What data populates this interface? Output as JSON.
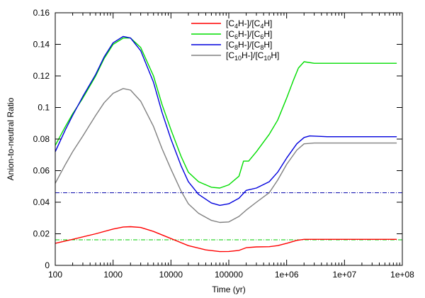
{
  "chart_data": {
    "type": "line",
    "xlabel": "Time (yr)",
    "ylabel": "Anion-to-neutral Ratio",
    "xscale": "log",
    "xlim": [
      100,
      100000000
    ],
    "ylim": [
      0,
      0.16
    ],
    "x_tick_labels": [
      "100",
      "1000",
      "10000",
      "100000",
      "1e+06",
      "1e+07",
      "1e+08"
    ],
    "y_tick_labels": [
      "0",
      "0.02",
      "0.04",
      "0.06",
      "0.08",
      "0.1",
      "0.12",
      "0.14",
      "0.16"
    ],
    "legend_position": "top-center",
    "series": [
      {
        "name": "[C4H-]/[C4H]",
        "legend_parts": [
          [
            "[C",
            ""
          ],
          [
            "4",
            "sub"
          ],
          [
            "H-]/[C",
            ""
          ],
          [
            "4",
            "sub"
          ],
          [
            "H]",
            ""
          ]
        ],
        "color": "#ff0000",
        "x": [
          100,
          200,
          500,
          1000,
          1500,
          2000,
          3000,
          5000,
          10000,
          20000,
          40000,
          70000,
          100000,
          150000,
          200000,
          300000,
          500000,
          700000,
          1000000,
          1500000,
          2000000,
          3000000,
          10000000,
          80000000
        ],
        "y": [
          0.014,
          0.0165,
          0.02,
          0.023,
          0.0243,
          0.0245,
          0.024,
          0.0215,
          0.017,
          0.0125,
          0.0098,
          0.0087,
          0.0088,
          0.0095,
          0.0112,
          0.0117,
          0.0118,
          0.0125,
          0.014,
          0.0158,
          0.0165,
          0.0165,
          0.0165,
          0.0165
        ]
      },
      {
        "name": "[C6H-]/[C6H]",
        "legend_parts": [
          [
            "[C",
            ""
          ],
          [
            "6",
            "sub"
          ],
          [
            "H-]/[C",
            ""
          ],
          [
            "6",
            "sub"
          ],
          [
            "H]",
            ""
          ]
        ],
        "color": "#00dd00",
        "x": [
          100,
          150,
          200,
          300,
          500,
          700,
          1000,
          1500,
          2000,
          3000,
          5000,
          7000,
          10000,
          15000,
          20000,
          30000,
          50000,
          70000,
          100000,
          150000,
          180000,
          220000,
          300000,
          500000,
          700000,
          1000000,
          1300000,
          1600000,
          2000000,
          3000000,
          10000000,
          80000000
        ],
        "y": [
          0.076,
          0.088,
          0.096,
          0.106,
          0.12,
          0.131,
          0.14,
          0.144,
          0.144,
          0.138,
          0.12,
          0.102,
          0.086,
          0.069,
          0.059,
          0.053,
          0.0495,
          0.049,
          0.051,
          0.0565,
          0.066,
          0.066,
          0.072,
          0.083,
          0.092,
          0.106,
          0.117,
          0.125,
          0.129,
          0.128,
          0.128,
          0.128
        ]
      },
      {
        "name": "[C8H-]/[C8H]",
        "legend_parts": [
          [
            "[C",
            ""
          ],
          [
            "8",
            "sub"
          ],
          [
            "H-]/[C",
            ""
          ],
          [
            "8",
            "sub"
          ],
          [
            "H]",
            ""
          ]
        ],
        "color": "#0000dd",
        "x": [
          100,
          150,
          200,
          300,
          500,
          700,
          1000,
          1500,
          2000,
          3000,
          5000,
          7000,
          10000,
          15000,
          20000,
          30000,
          50000,
          70000,
          100000,
          150000,
          200000,
          300000,
          500000,
          700000,
          1000000,
          1500000,
          2000000,
          2500000,
          5000000,
          20000000,
          80000000
        ],
        "y": [
          0.072,
          0.086,
          0.095,
          0.107,
          0.121,
          0.132,
          0.141,
          0.145,
          0.144,
          0.136,
          0.116,
          0.097,
          0.08,
          0.063,
          0.053,
          0.045,
          0.0395,
          0.038,
          0.039,
          0.0425,
          0.0475,
          0.049,
          0.053,
          0.059,
          0.068,
          0.077,
          0.081,
          0.082,
          0.0815,
          0.0815,
          0.0815
        ]
      },
      {
        "name": "[C10H-]/[C10H]",
        "legend_parts": [
          [
            "[C",
            ""
          ],
          [
            "10",
            "sub"
          ],
          [
            "H-]/[C",
            ""
          ],
          [
            "10",
            "sub"
          ],
          [
            "H]",
            ""
          ]
        ],
        "color": "#808080",
        "x": [
          100,
          150,
          200,
          300,
          500,
          700,
          1000,
          1500,
          2000,
          3000,
          5000,
          7000,
          10000,
          15000,
          20000,
          30000,
          50000,
          70000,
          100000,
          150000,
          200000,
          300000,
          500000,
          700000,
          1000000,
          1500000,
          2000000,
          3000000,
          10000000,
          80000000
        ],
        "y": [
          0.052,
          0.064,
          0.072,
          0.082,
          0.095,
          0.103,
          0.109,
          0.112,
          0.111,
          0.104,
          0.088,
          0.074,
          0.061,
          0.047,
          0.039,
          0.033,
          0.0285,
          0.0272,
          0.0275,
          0.031,
          0.035,
          0.04,
          0.046,
          0.054,
          0.064,
          0.073,
          0.077,
          0.0775,
          0.0775,
          0.0775
        ]
      }
    ],
    "reference_lines": [
      {
        "y": 0.046,
        "color": "#0000aa",
        "style": "dash-dot"
      },
      {
        "y": 0.0162,
        "color": "#00cc00",
        "style": "dash-dot"
      }
    ]
  }
}
